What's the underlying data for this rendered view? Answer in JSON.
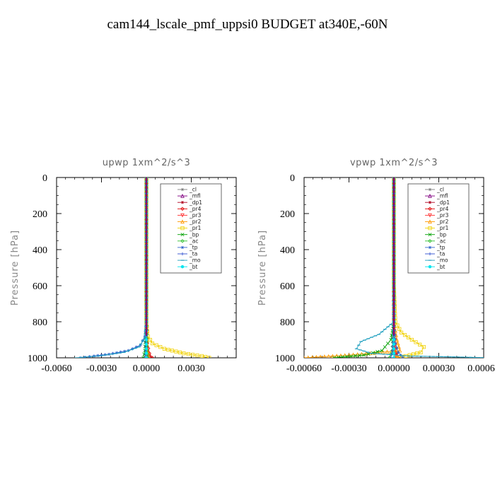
{
  "title": "cam144_lscale_pmf_uppsi0  BUDGET at340E,-60N",
  "chart_data": [
    {
      "type": "line",
      "title": "upwp   1xm^2/s^3",
      "ylabel": "Pressure  [hPa]",
      "xlabel": "",
      "xlim": [
        -0.006,
        0.006
      ],
      "ylim": [
        1000,
        0
      ],
      "xticks": [
        -0.006,
        -0.003,
        0.0,
        0.003
      ],
      "xtick_labels": [
        "-0.0060",
        "-0.0030",
        "0.0000",
        "0.0030"
      ],
      "yticks": [
        0,
        200,
        400,
        600,
        800,
        1000
      ],
      "ytick_labels": [
        "0",
        "200",
        "400",
        "600",
        "800",
        "1000"
      ],
      "legend_loc": "top-right",
      "series": [
        {
          "name": "_cl",
          "color": "#7f7f7f",
          "marker": "star",
          "x": [
            0,
            0,
            0,
            0,
            0,
            0,
            0,
            0,
            0
          ],
          "y": [
            0,
            150,
            300,
            450,
            600,
            750,
            900,
            960,
            1000
          ]
        },
        {
          "name": "_mfl",
          "color": "#800080",
          "marker": "triangle",
          "x": [
            0,
            0,
            0,
            0,
            0,
            0,
            0,
            0,
            5e-05,
            0.0001
          ],
          "y": [
            0,
            150,
            300,
            450,
            600,
            750,
            900,
            950,
            980,
            1000
          ]
        },
        {
          "name": "_dp1",
          "color": "#b00020",
          "marker": "star",
          "x": [
            0,
            0,
            0,
            0,
            0,
            0,
            0.0001,
            0.0002,
            0.0003
          ],
          "y": [
            0,
            200,
            400,
            600,
            800,
            900,
            960,
            985,
            1000
          ]
        },
        {
          "name": "_pr4",
          "color": "#e00000",
          "marker": "diamond",
          "x": [
            0,
            0,
            0,
            0,
            0,
            5e-05,
            0.0002,
            0.0004
          ],
          "y": [
            0,
            200,
            400,
            600,
            800,
            920,
            975,
            1000
          ]
        },
        {
          "name": "_pr3",
          "color": "#ff3030",
          "marker": "triangle-down",
          "x": [
            0,
            0,
            0,
            0,
            0,
            5e-05,
            0.0001
          ],
          "y": [
            0,
            200,
            400,
            600,
            800,
            950,
            1000
          ]
        },
        {
          "name": "_pr2",
          "color": "#ff9900",
          "marker": "triangle",
          "x": [
            0,
            0,
            0,
            0,
            0,
            5e-05,
            0.0002
          ],
          "y": [
            0,
            200,
            400,
            600,
            800,
            950,
            1000
          ]
        },
        {
          "name": "_pr1",
          "color": "#f0d000",
          "marker": "square",
          "x": [
            0,
            0,
            0,
            0,
            0,
            0.0001,
            0.0004,
            0.0012,
            0.0025,
            0.0037,
            0.0042
          ],
          "y": [
            0,
            200,
            400,
            600,
            800,
            880,
            920,
            950,
            975,
            990,
            1000
          ]
        },
        {
          "name": "_bp",
          "color": "#00a000",
          "marker": "x",
          "x": [
            0,
            0,
            0,
            0,
            0,
            -0.0001,
            -0.0002
          ],
          "y": [
            0,
            200,
            400,
            600,
            800,
            960,
            1000
          ]
        },
        {
          "name": "_ac",
          "color": "#30c030",
          "marker": "diamond",
          "x": [
            0,
            0,
            0,
            0,
            0,
            5e-05,
            0.0001
          ],
          "y": [
            0,
            200,
            400,
            600,
            800,
            960,
            1000
          ]
        },
        {
          "name": "_tp",
          "color": "#3366cc",
          "marker": "star",
          "x": [
            0,
            0,
            0,
            0,
            0,
            -0.0001,
            -0.0004,
            -0.0012,
            -0.0025,
            -0.0035,
            -0.0044
          ],
          "y": [
            0,
            200,
            400,
            600,
            800,
            880,
            930,
            960,
            980,
            990,
            1000
          ]
        },
        {
          "name": "_ta",
          "color": "#3050d0",
          "marker": "plus",
          "x": [
            0,
            0,
            0,
            0,
            0,
            -5e-05,
            -0.0001
          ],
          "y": [
            0,
            200,
            400,
            600,
            800,
            960,
            1000
          ]
        },
        {
          "name": "_mo",
          "color": "#1f9fbf",
          "marker": "dash",
          "x": [
            0,
            0,
            0,
            0,
            0,
            -0.0001,
            -0.0005,
            -0.0015,
            -0.0032,
            -0.0047
          ],
          "y": [
            0,
            200,
            400,
            600,
            800,
            890,
            940,
            970,
            990,
            1000
          ]
        },
        {
          "name": "_bt",
          "color": "#00e5ee",
          "marker": "circle",
          "x": [
            0,
            0,
            0,
            0,
            0,
            0,
            0
          ],
          "y": [
            0,
            200,
            400,
            600,
            800,
            950,
            1000
          ]
        }
      ]
    },
    {
      "type": "line",
      "title": "vpwp   1xm^2/s^3",
      "ylabel": "Pressure  [hPa]",
      "xlabel": "",
      "xlim": [
        -0.0006,
        0.0006
      ],
      "ylim": [
        1000,
        0
      ],
      "xticks": [
        -0.0006,
        -0.0003,
        0.0,
        0.0003,
        0.0006
      ],
      "xtick_labels": [
        "-0.00060",
        "-0.00030",
        "0.00000",
        "0.00030",
        "0.00060"
      ],
      "yticks": [
        0,
        200,
        400,
        600,
        800,
        1000
      ],
      "ytick_labels": [
        "0",
        "200",
        "400",
        "600",
        "800",
        "1000"
      ],
      "legend_loc": "top-right",
      "series": [
        {
          "name": "_cl",
          "color": "#7f7f7f",
          "marker": "star",
          "x": [
            0,
            0,
            0,
            0,
            0,
            0,
            0,
            0
          ],
          "y": [
            0,
            150,
            300,
            450,
            600,
            750,
            900,
            1000
          ]
        },
        {
          "name": "_mfl",
          "color": "#800080",
          "marker": "triangle",
          "x": [
            0,
            0,
            0,
            0,
            0,
            0,
            0,
            1e-05
          ],
          "y": [
            0,
            150,
            300,
            450,
            600,
            750,
            900,
            1000
          ]
        },
        {
          "name": "_dp1",
          "color": "#b00020",
          "marker": "star",
          "x": [
            0,
            0,
            0,
            0,
            0,
            1e-05,
            3e-05
          ],
          "y": [
            0,
            200,
            400,
            600,
            800,
            950,
            1000
          ]
        },
        {
          "name": "_pr4",
          "color": "#e00000",
          "marker": "diamond",
          "x": [
            0,
            0,
            0,
            0,
            0,
            1e-05,
            2e-05
          ],
          "y": [
            0,
            200,
            400,
            600,
            800,
            950,
            1000
          ]
        },
        {
          "name": "_pr3",
          "color": "#ff3030",
          "marker": "triangle-down",
          "x": [
            0,
            0,
            0,
            0,
            0,
            1e-05,
            2e-05
          ],
          "y": [
            0,
            200,
            400,
            600,
            800,
            950,
            1000
          ]
        },
        {
          "name": "_pr2",
          "color": "#ff9900",
          "marker": "triangle",
          "x": [
            0,
            0,
            0,
            0,
            0,
            2e-05,
            4e-05,
            -0.0003,
            -0.0006
          ],
          "y": [
            0,
            200,
            400,
            600,
            800,
            900,
            960,
            985,
            1000
          ]
        },
        {
          "name": "_pr1",
          "color": "#f0d000",
          "marker": "square",
          "x": [
            0,
            0,
            0,
            0,
            1e-05,
            5e-05,
            0.00012,
            0.0002,
            0.00018,
            8e-05,
            1e-05
          ],
          "y": [
            0,
            200,
            400,
            600,
            800,
            860,
            900,
            940,
            970,
            990,
            1000
          ]
        },
        {
          "name": "_bp",
          "color": "#00a000",
          "marker": "x",
          "x": [
            0,
            0,
            0,
            0,
            0,
            -2e-05,
            -8e-05,
            -0.0002,
            -0.0004
          ],
          "y": [
            0,
            200,
            400,
            600,
            800,
            900,
            960,
            985,
            1000
          ]
        },
        {
          "name": "_ac",
          "color": "#30c030",
          "marker": "diamond",
          "x": [
            0,
            0,
            0,
            0,
            0,
            -1e-05,
            -3e-05
          ],
          "y": [
            0,
            200,
            400,
            600,
            800,
            960,
            1000
          ]
        },
        {
          "name": "_tp",
          "color": "#3366cc",
          "marker": "star",
          "x": [
            0,
            0,
            0,
            0,
            0,
            1e-05,
            3e-05,
            6e-05
          ],
          "y": [
            0,
            200,
            400,
            600,
            800,
            920,
            970,
            1000
          ]
        },
        {
          "name": "_ta",
          "color": "#3050d0",
          "marker": "plus",
          "x": [
            0,
            0,
            0,
            0,
            0,
            -1e-05,
            -2e-05
          ],
          "y": [
            0,
            200,
            400,
            600,
            800,
            960,
            1000
          ]
        },
        {
          "name": "_mo",
          "color": "#1f9fbf",
          "marker": "dash",
          "x": [
            0,
            0,
            0,
            0,
            0,
            -0.0001,
            -0.00022,
            -0.00025,
            -0.00015,
            0.0001,
            0.0004,
            0.00065
          ],
          "y": [
            0,
            200,
            400,
            600,
            800,
            870,
            910,
            950,
            975,
            990,
            995,
            1000
          ]
        },
        {
          "name": "_bt",
          "color": "#00e5ee",
          "marker": "circle",
          "x": [
            0,
            0,
            0,
            0,
            0,
            0,
            0
          ],
          "y": [
            0,
            200,
            400,
            600,
            800,
            950,
            1000
          ]
        }
      ]
    }
  ]
}
